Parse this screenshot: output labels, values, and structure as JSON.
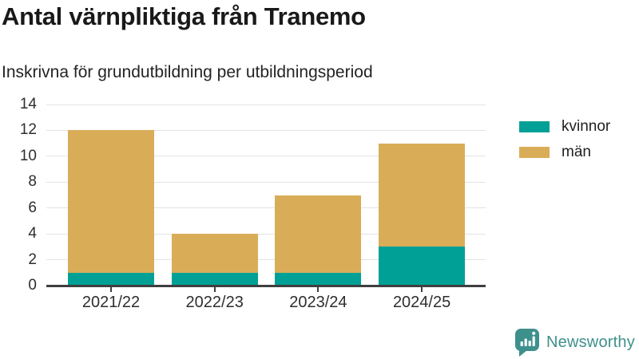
{
  "title": "Antal värnpliktiga från Tranemo",
  "subtitle": "Inskrivna för grundutbildning per utbildningsperiod",
  "chart_data": {
    "type": "bar",
    "stacked": true,
    "title": "Antal värnpliktiga från Tranemo",
    "subtitle": "Inskrivna för grundutbildning per utbildningsperiod",
    "categories": [
      "2021/22",
      "2022/23",
      "2023/24",
      "2024/25"
    ],
    "series": [
      {
        "name": "kvinnor",
        "values": [
          1,
          1,
          1,
          3
        ],
        "color": "#00a096"
      },
      {
        "name": "män",
        "values": [
          11,
          3,
          6,
          8
        ],
        "color": "#d9ad58"
      }
    ],
    "totals": [
      12,
      4,
      7,
      11
    ],
    "xlabel": "",
    "ylabel": "",
    "ylim": [
      0,
      14
    ],
    "yticks": [
      0,
      2,
      4,
      6,
      8,
      10,
      12,
      14
    ],
    "grid": true,
    "legend_position": "right"
  },
  "legend": {
    "items": [
      {
        "label": "kvinnor",
        "color": "#00a096"
      },
      {
        "label": "män",
        "color": "#d9ad58"
      }
    ]
  },
  "branding": {
    "name": "Newsworthy",
    "color": "#3e908c"
  },
  "style_colors": {
    "axis": "#3f3f3f",
    "gridline": "#e3e3e3",
    "tick_text": "#2e2e2e",
    "title_text": "#191919"
  }
}
